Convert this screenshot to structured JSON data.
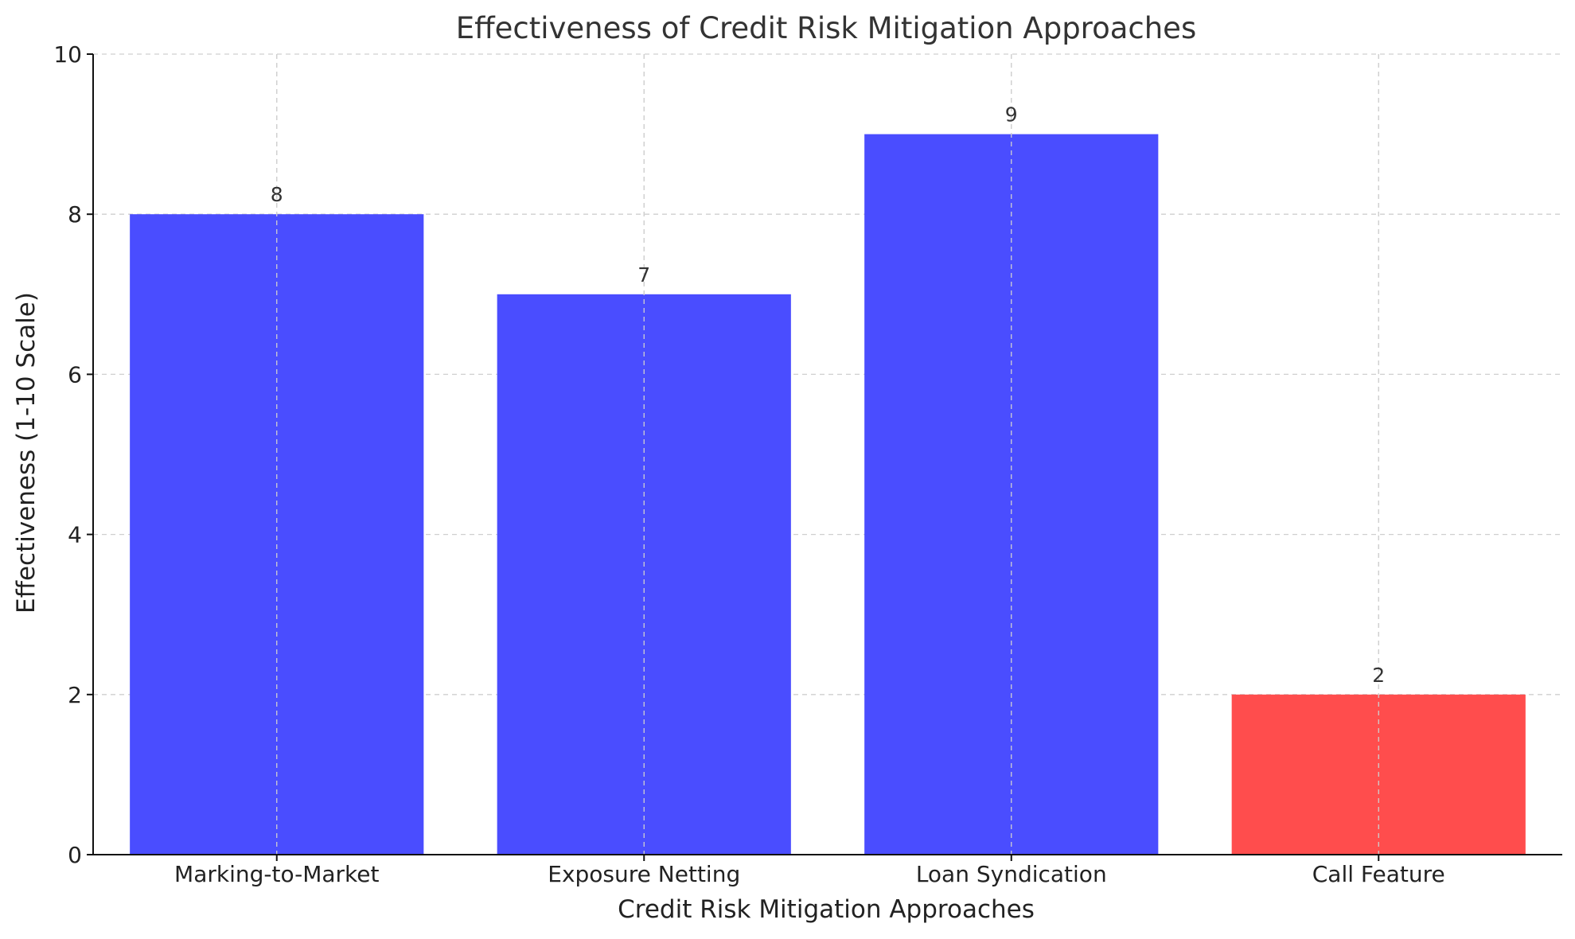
{
  "chart_data": {
    "type": "bar",
    "title": "Effectiveness of Credit Risk Mitigation Approaches",
    "xlabel": "Credit Risk Mitigation Approaches",
    "ylabel": "Effectiveness (1-10 Scale)",
    "categories": [
      "Marking-to-Market",
      "Exposure Netting",
      "Loan Syndication",
      "Call Feature"
    ],
    "values": [
      8,
      7,
      9,
      2
    ],
    "bar_colors": [
      "#4a4dff",
      "#4a4dff",
      "#4a4dff",
      "#ff4d4d"
    ],
    "ylim": [
      0,
      10
    ],
    "yticks": [
      0,
      2,
      4,
      6,
      8,
      10
    ],
    "grid": true,
    "data_labels": [
      "8",
      "7",
      "9",
      "2"
    ]
  }
}
